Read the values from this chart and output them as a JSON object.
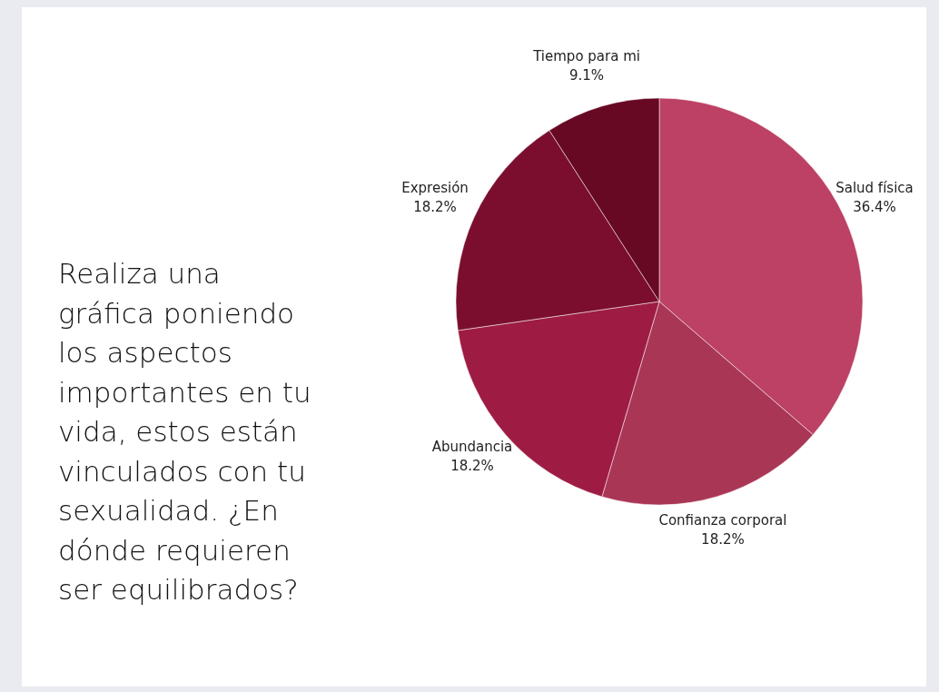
{
  "chart_data": {
    "type": "pie",
    "title": "Realiza una gráfica poniendo los aspectos importantes en tu vida, estos están vinculados con tu sexualidad. ¿En dónde requieren ser equilibrados?",
    "categories": [
      "Salud física",
      "Confianza corporal",
      "Abundancia",
      "Expresión",
      "Tiempo para mi"
    ],
    "values": [
      36.4,
      18.2,
      18.2,
      18.2,
      9.1
    ],
    "value_labels": [
      "36.4%",
      "18.2%",
      "18.2%",
      "18.2%",
      "9.1%"
    ],
    "colors": [
      "#bc4164",
      "#aa3656",
      "#9e1c44",
      "#7b0e2e",
      "#680924"
    ]
  }
}
